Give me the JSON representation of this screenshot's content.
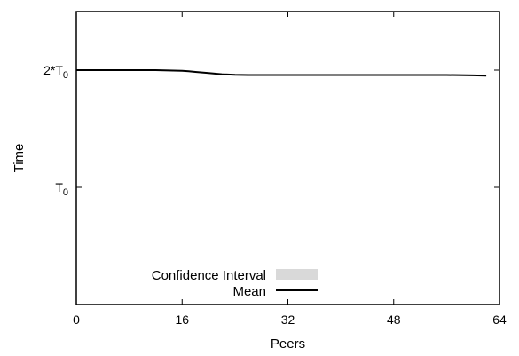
{
  "chart_data": {
    "type": "line",
    "title": "",
    "xlabel": "Peers",
    "ylabel": "Time",
    "xlim": [
      0,
      64
    ],
    "ylim": [
      0,
      2.5
    ],
    "x_ticks": [
      0,
      16,
      32,
      48,
      64
    ],
    "y_ticks": [
      {
        "value": 1,
        "label": "T",
        "sub": "0"
      },
      {
        "value": 2,
        "label": "2*T",
        "sub": "0"
      }
    ],
    "grid": false,
    "legend_position": "bottom-center",
    "series": [
      {
        "name": "Mean",
        "color": "#000000",
        "x": [
          0,
          4,
          8,
          12,
          16,
          17,
          18,
          20,
          22,
          24,
          26,
          28,
          32,
          40,
          48,
          56,
          60,
          62
        ],
        "y": [
          2.0,
          2.0,
          2.0,
          2.0,
          1.995,
          1.99,
          1.985,
          1.975,
          1.965,
          1.96,
          1.958,
          1.958,
          1.958,
          1.958,
          1.958,
          1.958,
          1.955,
          1.953
        ]
      }
    ],
    "confidence_interval": {
      "name": "Confidence Interval",
      "color": "#d9d9d9"
    }
  }
}
